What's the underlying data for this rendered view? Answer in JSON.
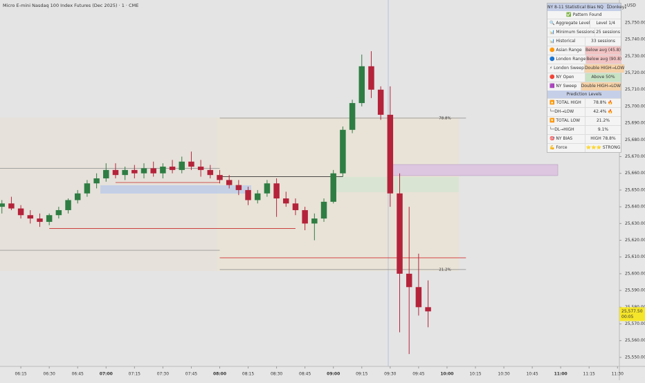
{
  "header": {
    "title": "Micro E-mini Nasdaq 100 Index Futures (Dec 2025) · 1 · CME",
    "currency": "USD"
  },
  "chart_data": {
    "type": "candlestick",
    "grid": false,
    "up_color": "#2e7d43",
    "down_color": "#b4233a",
    "x": [
      "06:05",
      "06:10",
      "06:15",
      "06:20",
      "06:25",
      "06:30",
      "06:35",
      "06:40",
      "06:45",
      "06:50",
      "06:55",
      "07:00",
      "07:05",
      "07:10",
      "07:15",
      "07:20",
      "07:25",
      "07:30",
      "07:35",
      "07:40",
      "07:45",
      "07:50",
      "07:55",
      "08:00",
      "08:05",
      "08:10",
      "08:15",
      "08:20",
      "08:25",
      "08:30",
      "08:35",
      "08:40",
      "08:45",
      "08:50",
      "08:55",
      "09:00",
      "09:05",
      "09:10",
      "09:15",
      "09:20",
      "09:25",
      "09:30",
      "09:35",
      "09:40",
      "09:45",
      "09:50"
    ],
    "open": [
      25640,
      25642,
      25639,
      25635,
      25633,
      25631,
      25635,
      25638,
      25644,
      25648,
      25654,
      25657,
      25662,
      25659,
      25662,
      25660,
      25663,
      25660,
      25664,
      25662,
      25667,
      25664,
      25662,
      25659,
      25656,
      25653,
      25650,
      25644,
      25648,
      25654,
      25645,
      25642,
      25638,
      25630,
      25633,
      25643,
      25660,
      25686,
      25702,
      25724,
      25710,
      25695,
      25648,
      25600,
      25592,
      25580
    ],
    "high": [
      25644,
      25646,
      25641,
      25638,
      25636,
      25636,
      25640,
      25645,
      25650,
      25656,
      25660,
      25666,
      25666,
      25664,
      25665,
      25666,
      25667,
      25666,
      25668,
      25670,
      25673,
      25668,
      25665,
      25662,
      25659,
      25656,
      25652,
      25650,
      25656,
      25657,
      25649,
      25645,
      25640,
      25636,
      25645,
      25662,
      25688,
      25704,
      25731,
      25733,
      25712,
      25712,
      25660,
      25640,
      25612,
      25596
    ],
    "low": [
      25636,
      25638,
      25633,
      25630,
      25628,
      25629,
      25633,
      25636,
      25642,
      25646,
      25651,
      25655,
      25657,
      25656,
      25657,
      25657,
      25658,
      25657,
      25660,
      25660,
      25662,
      25658,
      25657,
      25654,
      25651,
      25647,
      25641,
      25642,
      25646,
      25634,
      25640,
      25635,
      25626,
      25620,
      25631,
      25642,
      25658,
      25684,
      25700,
      25705,
      25692,
      25640,
      25565,
      25552,
      25575,
      25568
    ],
    "close": [
      25642,
      25639,
      25635,
      25633,
      25631,
      25635,
      25638,
      25644,
      25648,
      25654,
      25657,
      25662,
      25659,
      25662,
      25660,
      25663,
      25660,
      25664,
      25662,
      25667,
      25664,
      25662,
      25659,
      25656,
      25653,
      25650,
      25644,
      25648,
      25654,
      25645,
      25642,
      25638,
      25630,
      25633,
      25643,
      25660,
      25686,
      25702,
      25724,
      25710,
      25695,
      25648,
      25600,
      25592,
      25580,
      25577.5
    ],
    "xlim": [
      "06:04",
      "11:31"
    ],
    "xticks": [
      "06:15",
      "06:30",
      "06:45",
      "07:00",
      "07:15",
      "07:30",
      "07:45",
      "08:00",
      "08:15",
      "08:30",
      "08:45",
      "09:00",
      "09:15",
      "09:30",
      "09:45",
      "10:00",
      "10:15",
      "10:30",
      "10:45",
      "11:00",
      "11:15",
      "11:30"
    ],
    "ylim": [
      25544.6,
      25763.6
    ],
    "yticks": [
      {
        "value": 25550,
        "label": "25,550.00"
      },
      {
        "value": 25560,
        "label": "25,560.00"
      },
      {
        "value": 25570,
        "label": "25,570.00"
      },
      {
        "value": 25580,
        "label": "25,580.00"
      },
      {
        "value": 25590,
        "label": "25,590.00"
      },
      {
        "value": 25600,
        "label": "25,600.00"
      },
      {
        "value": 25610,
        "label": "25,610.00"
      },
      {
        "value": 25620,
        "label": "25,620.00"
      },
      {
        "value": 25630,
        "label": "25,630.00"
      },
      {
        "value": 25640,
        "label": "25,640.00"
      },
      {
        "value": 25650,
        "label": "25,650.00"
      },
      {
        "value": 25660,
        "label": "25,660.00"
      },
      {
        "value": 25670,
        "label": "25,670.00"
      },
      {
        "value": 25680,
        "label": "25,680.00"
      },
      {
        "value": 25690,
        "label": "25,690.00"
      },
      {
        "value": 25700,
        "label": "25,700.00"
      },
      {
        "value": 25710,
        "label": "25,710.00"
      },
      {
        "value": 25720,
        "label": "25,720.00"
      },
      {
        "value": 25730,
        "label": "25,730.00"
      },
      {
        "value": 25740,
        "label": "25,740.00"
      },
      {
        "value": 25750,
        "label": "25,750.00"
      }
    ],
    "levels": [
      {
        "value": 25693,
        "start": "08:00",
        "end": "10:10",
        "color": "#888888",
        "label": "78.8%"
      },
      {
        "value": 25602.5,
        "start": "08:00",
        "end": "10:10",
        "color": "#888888",
        "label": "21.2%"
      },
      {
        "value": 25609.5,
        "start": "08:00",
        "end": "10:10",
        "color": "#d32f2f"
      },
      {
        "value": 25627,
        "start": "06:30",
        "end": "08:40",
        "color": "#c62828"
      },
      {
        "value": 25654.5,
        "start": "07:05",
        "end": "08:00",
        "color": "#c62828"
      },
      {
        "value": 25658,
        "start": "08:00",
        "end": "09:05",
        "color": "#333333"
      },
      {
        "value": 25663,
        "start": "06:04",
        "end": "08:00",
        "color": "#999999"
      },
      {
        "value": 25614,
        "start": "06:04",
        "end": "08:00",
        "color": "#999999"
      }
    ],
    "price_tag": {
      "value": 25577.5,
      "label": "25,577.50",
      "countdown": "00:05"
    }
  },
  "table": {
    "title": "NY 8-11 Statistical Bias NQ 【Donkey】",
    "status": "✅ Pattern Found",
    "section": "Prediction Levels",
    "rows": [
      [
        "🔍 Aggregate Level",
        "Level 1/4",
        ""
      ],
      [
        "📊 Minimum Sessions",
        "25 sessions",
        ""
      ],
      [
        "📊 Historical",
        "33 sessions",
        ""
      ],
      [
        "🟠 Asian Range",
        "Below avg (45.8)",
        "#f2c4c4"
      ],
      [
        "🔵 London Range",
        "Below avg (90.8)",
        "#f2c4c4"
      ],
      [
        "⚡ London Sweep",
        "Double HIGH→LOW",
        "#f5d2a8"
      ],
      [
        "🔴 NY Open",
        "Above 50%",
        "#c7e3c4"
      ],
      [
        "🟪 NY Sweep",
        "Double HIGH→LOW",
        "#f5d2a8"
      ]
    ],
    "pred": [
      [
        "🔼 TOTAL HIGH",
        "78.8% 🔥"
      ],
      [
        "└─DH→LOW",
        "42.4% 🔥"
      ],
      [
        "🔽 TOTAL LOW",
        "21.2%"
      ],
      [
        "└─DL→HIGH",
        "9.1%"
      ],
      [
        "🎯 NY BIAS",
        "HIGH 78.8%"
      ],
      [
        "💪 Force",
        "⭐⭐⭐ STRONG"
      ]
    ]
  }
}
